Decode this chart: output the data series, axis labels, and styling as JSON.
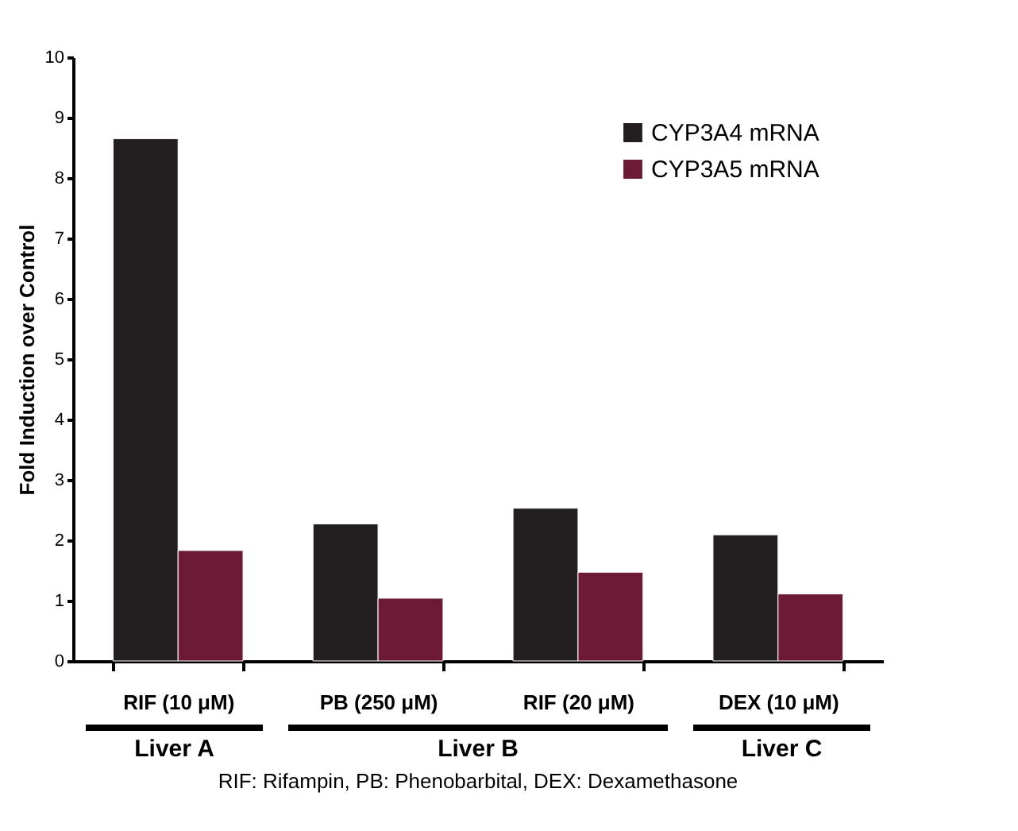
{
  "chart_data": {
    "type": "bar",
    "ylabel": "Fold Induction over Control",
    "categories": [
      "RIF (10 μM)",
      "PB (250 μM)",
      "RIF (20 μM)",
      "DEX (10 μM)"
    ],
    "series": [
      {
        "name": "CYP3A4 mRNA",
        "color": "#231f20",
        "values": [
          8.65,
          2.27,
          2.53,
          2.09
        ]
      },
      {
        "name": "CYP3A5 mRNA",
        "color": "#6d1a36",
        "values": [
          1.83,
          1.04,
          1.47,
          1.11
        ]
      }
    ],
    "ylim": [
      0,
      10
    ],
    "yticks": [
      0,
      1,
      2,
      3,
      4,
      5,
      6,
      7,
      8,
      9,
      10
    ],
    "grid": false,
    "legend": "top right",
    "annotations": [
      "Liver A",
      "Liver B",
      "Liver C",
      "RIF: Rifampin, PB: Phenobarbital, DEX: Dexamethasone"
    ]
  }
}
